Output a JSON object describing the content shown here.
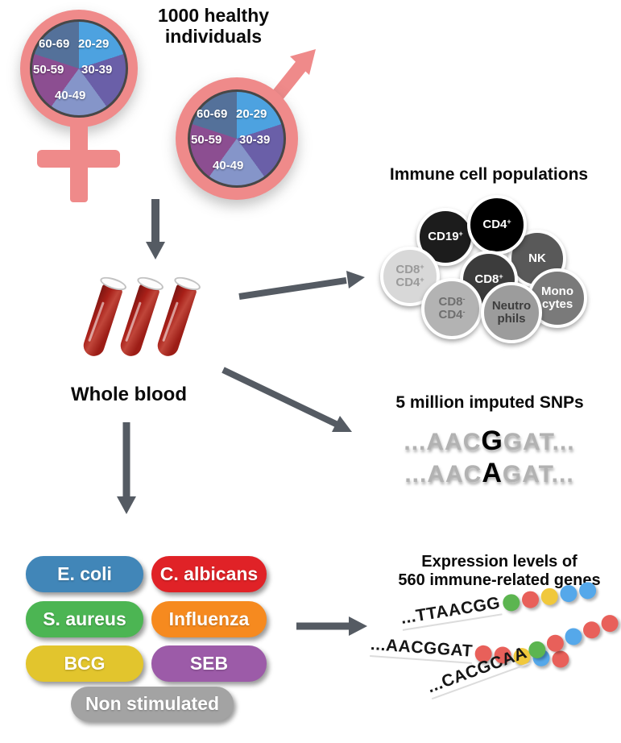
{
  "title_top": "1000 healthy\nindividuals",
  "age_pie": {
    "slices": [
      {
        "label": "20-29",
        "color": "#4da2e0"
      },
      {
        "label": "30-39",
        "color": "#6a5fa8"
      },
      {
        "label": "40-49",
        "color": "#8595c9"
      },
      {
        "label": "50-59",
        "color": "#8c4e91"
      },
      {
        "label": "60-69",
        "color": "#54719a"
      }
    ]
  },
  "whole_blood_label": "Whole blood",
  "immune_cells": {
    "title": "Immune cell populations",
    "cells": [
      {
        "name": "cd19",
        "lines": [
          [
            {
              "t": "CD19",
              "s": "+"
            }
          ]
        ],
        "bg": "#1c1c1c",
        "fg": "#ffffff"
      },
      {
        "name": "nk",
        "lines": [
          [
            {
              "t": "NK"
            }
          ]
        ],
        "bg": "#595959",
        "fg": "#ffffff"
      },
      {
        "name": "cd4",
        "lines": [
          [
            {
              "t": "CD4",
              "s": "+"
            }
          ]
        ],
        "bg": "#000000",
        "fg": "#ffffff"
      },
      {
        "name": "cd8",
        "lines": [
          [
            {
              "t": "CD8",
              "s": "+"
            }
          ]
        ],
        "bg": "#3c3c3c",
        "fg": "#ffffff"
      },
      {
        "name": "cd8p-cd4p",
        "lines": [
          [
            {
              "t": "CD8",
              "s": "+"
            }
          ],
          [
            {
              "t": "CD4",
              "s": "+"
            }
          ]
        ],
        "bg": "#d8d8d8",
        "fg": "#9a9a9a"
      },
      {
        "name": "cd8n-cd4n",
        "lines": [
          [
            {
              "t": "CD8",
              "s": "-"
            }
          ],
          [
            {
              "t": "CD4",
              "s": "-"
            }
          ]
        ],
        "bg": "#b3b3b3",
        "fg": "#6f6f6f"
      },
      {
        "name": "monocytes",
        "lines": [
          [
            {
              "t": "Mono"
            }
          ],
          [
            {
              "t": "cytes"
            }
          ]
        ],
        "bg": "#7a7a7a",
        "fg": "#ffffff"
      },
      {
        "name": "neutrophils",
        "lines": [
          [
            {
              "t": "Neutro"
            }
          ],
          [
            {
              "t": "phils"
            }
          ]
        ],
        "bg": "#9c9c9c",
        "fg": "#3d3d3d"
      }
    ]
  },
  "snps": {
    "title": "5 million imputed SNPs",
    "sequences": [
      {
        "pre": "...AAC",
        "snp": "G",
        "post": "GAT..."
      },
      {
        "pre": "...AAC",
        "snp": "A",
        "post": "GAT..."
      }
    ]
  },
  "stimuli": {
    "items": [
      {
        "label": "E. coli",
        "color": "#4186b8"
      },
      {
        "label": "C. albicans",
        "color": "#e02227"
      },
      {
        "label": "S. aureus",
        "color": "#4cb553"
      },
      {
        "label": "Influenza",
        "color": "#f68a1f"
      },
      {
        "label": "BCG",
        "color": "#e2c52d"
      },
      {
        "label": "SEB",
        "color": "#9c5ba8"
      },
      {
        "label": "Non stimulated",
        "color": "#a3a3a3"
      }
    ]
  },
  "expression": {
    "title": "Expression levels of\n560 immune-related genes",
    "dot_colors": {
      "green": "#5cb550",
      "red": "#e8605a",
      "yellow": "#f0c83c",
      "blue": "#55a8ea"
    },
    "rows": [
      {
        "seq": "...TTAACGG",
        "dots": [
          "green",
          "red",
          "yellow",
          "blue",
          "blue"
        ]
      },
      {
        "seq": "...AACGGAT",
        "dots": [
          "red",
          "red",
          "yellow",
          "blue",
          "red"
        ]
      },
      {
        "seq": "...CACGCAA",
        "dots": [
          "green",
          "red",
          "blue",
          "red",
          "red"
        ]
      }
    ]
  },
  "colors": {
    "gender_symbol": "#ef8a8a",
    "flow_arrow": "#555b63",
    "blood": "#a81f18"
  }
}
